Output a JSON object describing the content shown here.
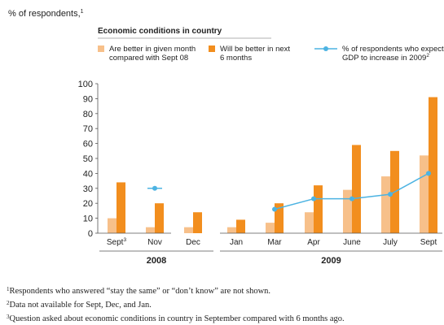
{
  "chart_data": {
    "type": "bar",
    "subtitle": "% of respondents,",
    "subtitle_mark": "1",
    "legend_title": "Economic conditions in country",
    "legend_placement": "top",
    "ylim": [
      0,
      100
    ],
    "y_ticks": [
      "0",
      "10",
      "20",
      "30",
      "40",
      "50",
      "60",
      "70",
      "80",
      "90",
      "100"
    ],
    "grid": false,
    "categories": [
      "Sept",
      "Nov",
      "Dec",
      "Jan",
      "Mar",
      "Apr",
      "June",
      "July",
      "Sept"
    ],
    "category_marks": [
      "3",
      "",
      "",
      "",
      "",
      "",
      "",
      "",
      ""
    ],
    "groups": [
      {
        "label": "2008",
        "categories": [
          "Sept",
          "Nov",
          "Dec"
        ]
      },
      {
        "label": "2009",
        "categories": [
          "Jan",
          "Mar",
          "Apr",
          "June",
          "July",
          "Sept"
        ]
      }
    ],
    "series": [
      {
        "name_lines": [
          "Are better in given month",
          "compared with Sept 08"
        ],
        "kind": "bar",
        "color": "#f7c08a",
        "values": [
          10,
          4,
          4,
          4,
          7,
          14,
          29,
          38,
          52
        ]
      },
      {
        "name_lines": [
          "Will be better in next",
          "6 months"
        ],
        "kind": "bar",
        "color": "#f28e1e",
        "values": [
          34,
          20,
          14,
          9,
          20,
          32,
          59,
          55,
          91
        ]
      },
      {
        "name_lines": [
          "% of respondents who expected",
          "GDP to increase in 2009"
        ],
        "name_mark": "2",
        "kind": "line",
        "color": "#4cb3e2",
        "values": [
          null,
          30,
          null,
          null,
          16,
          23,
          23,
          26,
          40
        ]
      }
    ]
  },
  "footnotes": [
    {
      "mark": "1",
      "text": "Respondents who answered “stay the same” or “don’t know” are not shown."
    },
    {
      "mark": "2",
      "text": "Data not available for Sept, Dec, and Jan."
    },
    {
      "mark": "3",
      "text": "Question asked about economic conditions in country in September compared with 6 months ago."
    }
  ]
}
